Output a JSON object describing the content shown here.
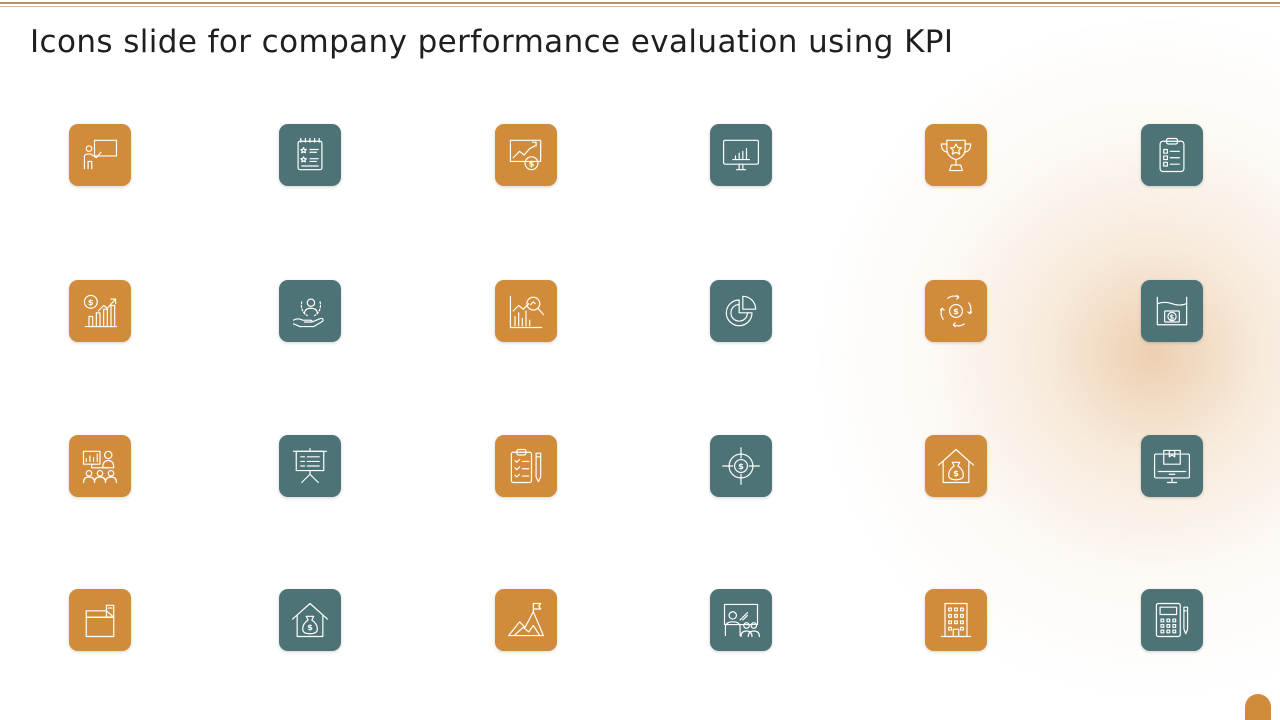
{
  "title": "Icons slide for company performance evaluation using KPI",
  "colors": {
    "orange": "#d08c3a",
    "teal": "#4e7376",
    "accent_line": "#b4935e"
  },
  "icon_rows": [
    [
      {
        "name": "presenter-at-board-icon",
        "color": "orange"
      },
      {
        "name": "star-rated-checklist-icon",
        "color": "teal"
      },
      {
        "name": "growth-chart-dollar-icon",
        "color": "orange"
      },
      {
        "name": "monitor-bar-chart-icon",
        "color": "teal"
      },
      {
        "name": "trophy-star-icon",
        "color": "orange"
      },
      {
        "name": "clipboard-checklist-icon",
        "color": "teal"
      }
    ],
    [
      {
        "name": "dollar-bar-graph-icon",
        "color": "orange"
      },
      {
        "name": "hand-holding-person-icon",
        "color": "teal"
      },
      {
        "name": "chart-magnifier-icon",
        "color": "orange"
      },
      {
        "name": "pie-chart-icon",
        "color": "teal"
      },
      {
        "name": "dollar-cycle-arrows-icon",
        "color": "orange"
      },
      {
        "name": "money-box-icon",
        "color": "teal"
      }
    ],
    [
      {
        "name": "team-presentation-icon",
        "color": "orange"
      },
      {
        "name": "presentation-easel-icon",
        "color": "teal"
      },
      {
        "name": "clipboard-pencil-icon",
        "color": "orange"
      },
      {
        "name": "dollar-target-icon",
        "color": "teal"
      },
      {
        "name": "house-money-bag-icon",
        "color": "orange"
      },
      {
        "name": "computer-package-icon",
        "color": "teal"
      }
    ],
    [
      {
        "name": "open-box-icon",
        "color": "orange"
      },
      {
        "name": "house-money-bag-icon",
        "color": "teal"
      },
      {
        "name": "mountain-flag-icon",
        "color": "orange"
      },
      {
        "name": "classroom-board-icon",
        "color": "teal"
      },
      {
        "name": "office-building-icon",
        "color": "orange"
      },
      {
        "name": "calculator-pen-icon",
        "color": "teal"
      }
    ]
  ]
}
